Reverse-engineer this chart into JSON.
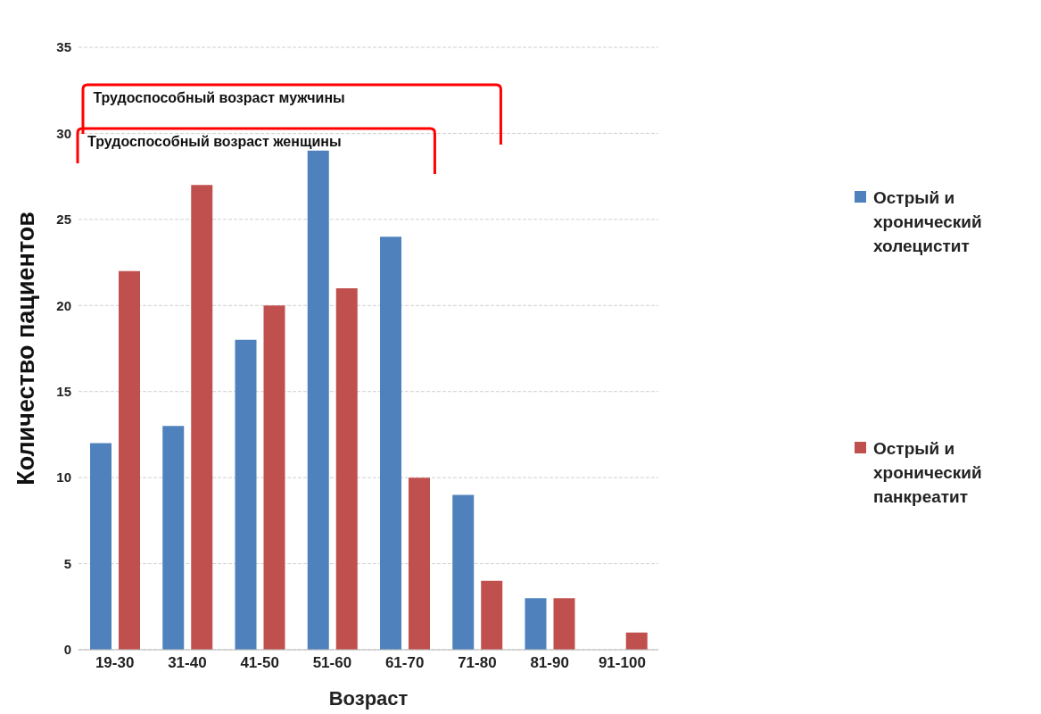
{
  "chart_data": {
    "type": "bar",
    "xlabel": "Возраст",
    "ylabel": "Количество пациентов",
    "categories": [
      "19-30",
      "31-40",
      "41-50",
      "51-60",
      "61-70",
      "71-80",
      "81-90",
      "91-100"
    ],
    "series": [
      {
        "name": "Острый и хронический холецистит",
        "color": "#4f81bd",
        "values": [
          12,
          13,
          18,
          29,
          24,
          9,
          3,
          0
        ]
      },
      {
        "name": "Острый и хронический панкреатит",
        "color": "#c0504d",
        "values": [
          22,
          27,
          20,
          21,
          10,
          4,
          3,
          1
        ]
      }
    ],
    "ylim": [
      0,
      35
    ],
    "yticks": [
      0,
      5,
      10,
      15,
      20,
      25,
      30,
      35
    ],
    "grid": "y",
    "legend": "right",
    "annotations": [
      "Трудоспособный возраст мужчины",
      "Трудоспособный возраст женщины"
    ]
  }
}
